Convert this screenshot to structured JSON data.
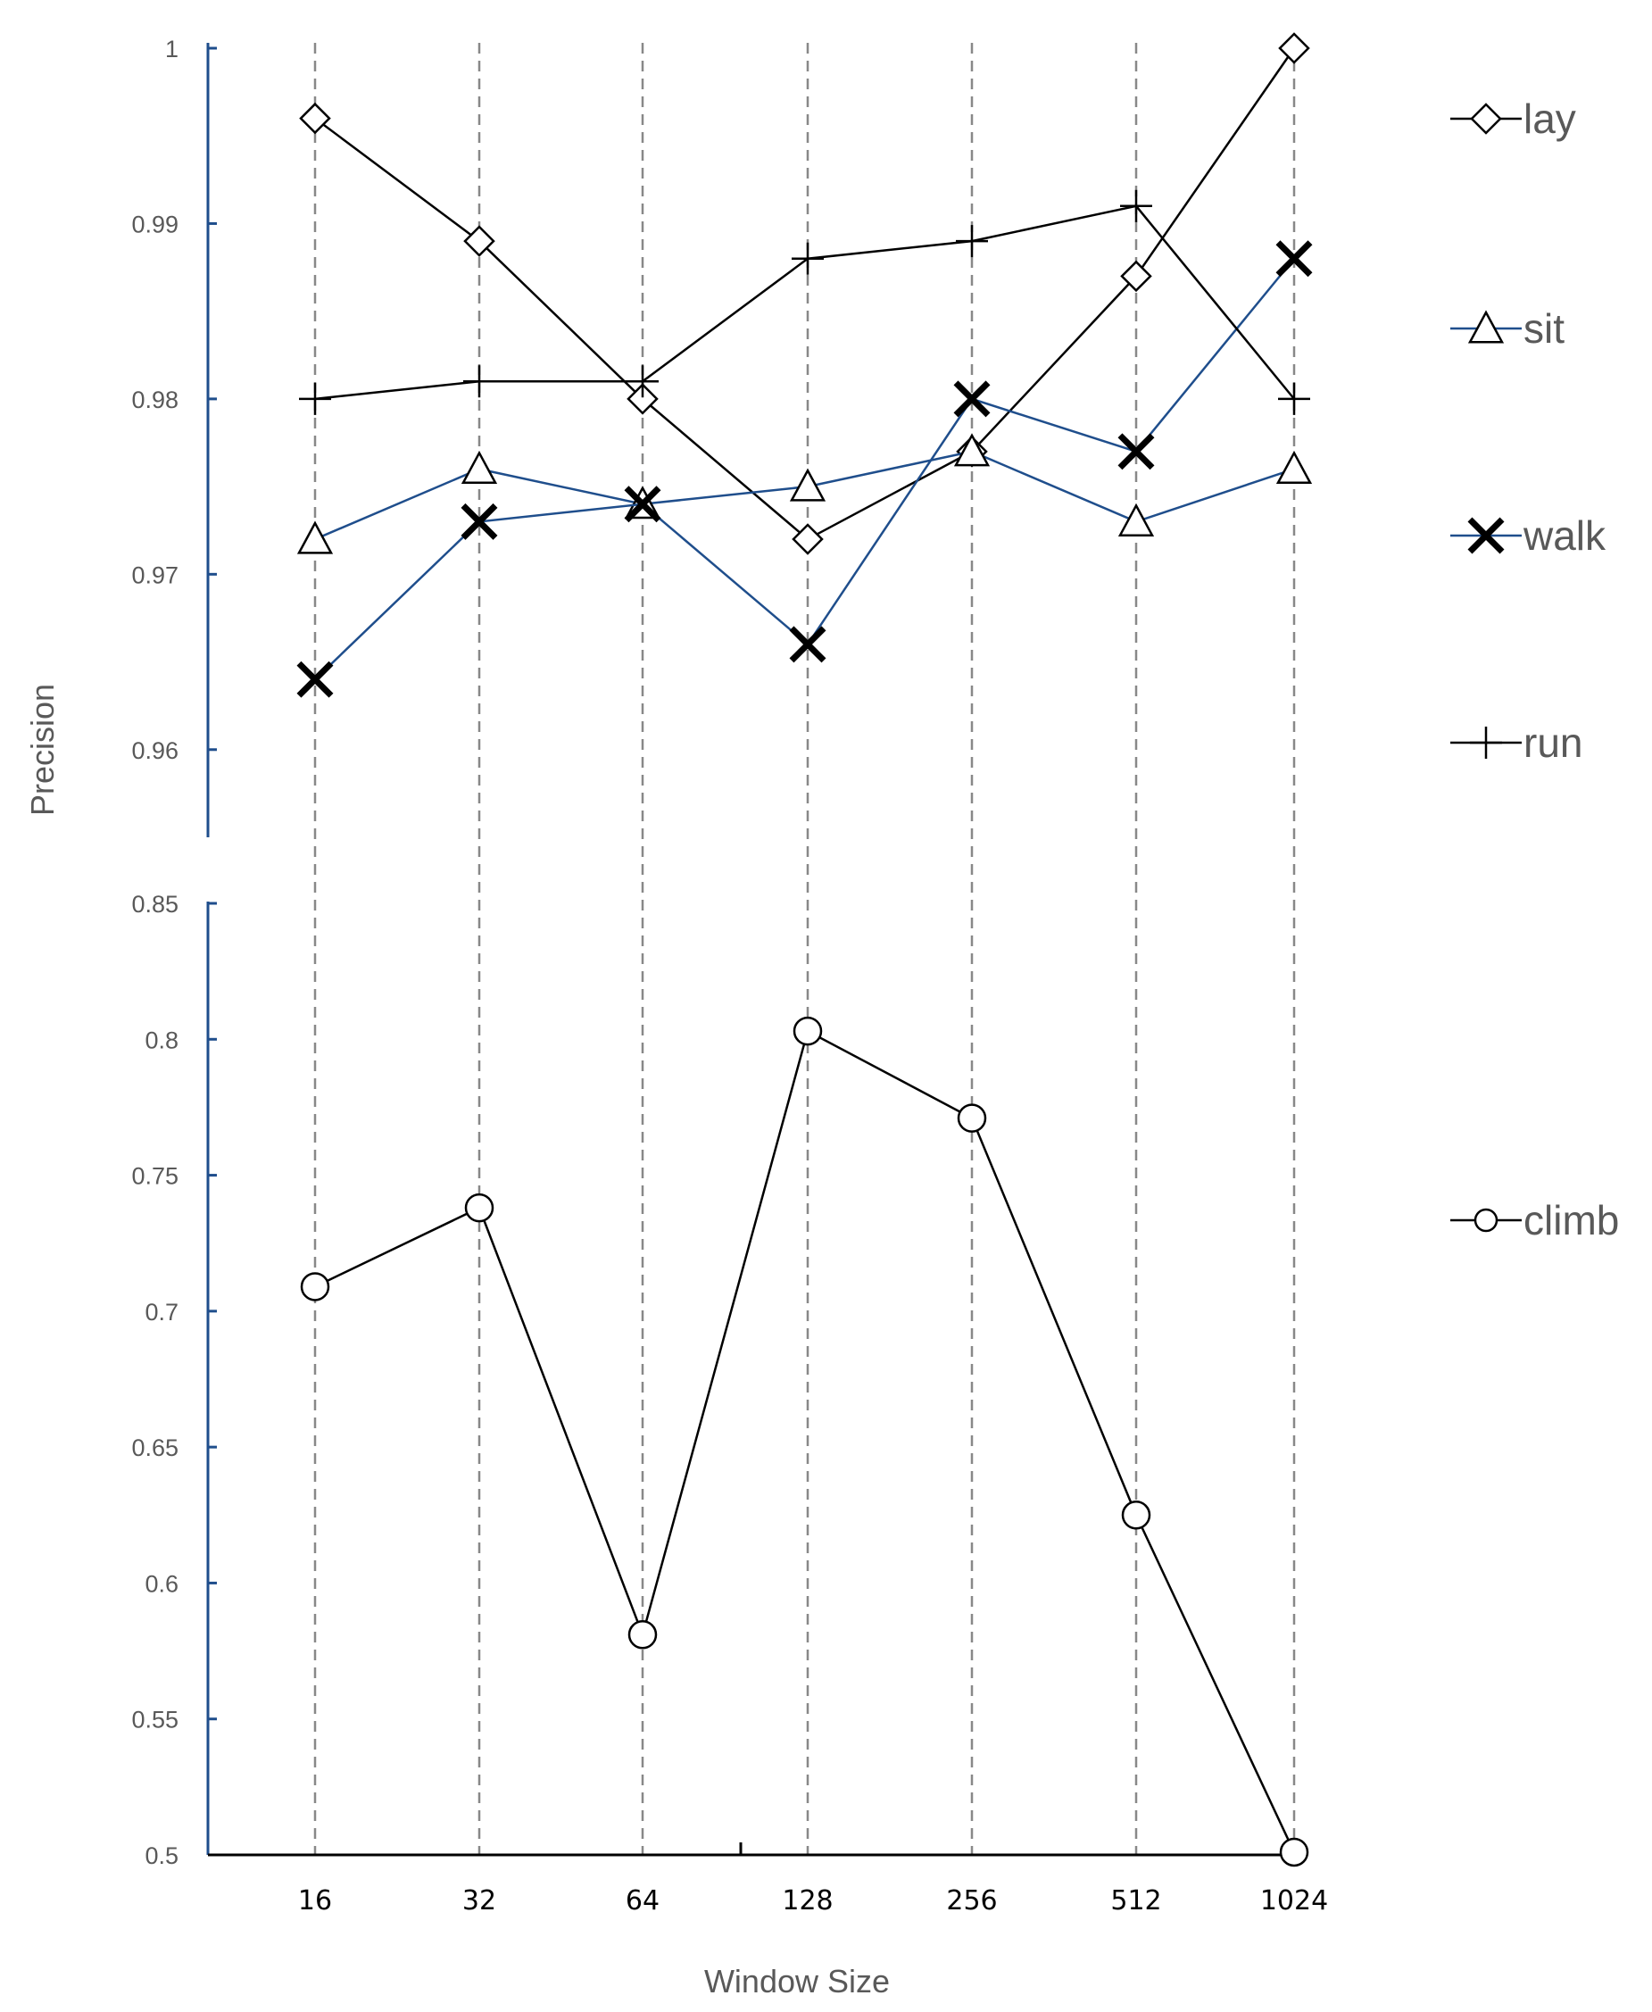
{
  "chart_data": [
    {
      "type": "line",
      "panel": "top",
      "ylabel": "Precision",
      "ylim": [
        0.955,
        1.0
      ],
      "yticks": [
        "1",
        "0.99",
        "0.98",
        "0.97",
        "0.96"
      ],
      "categories": [
        "16",
        "32",
        "64",
        "128",
        "256",
        "512",
        "1024"
      ],
      "series": [
        {
          "name": "lay",
          "marker": "diamond",
          "color": "#000000",
          "values": [
            0.996,
            0.989,
            0.98,
            0.972,
            0.977,
            0.987,
            1.0
          ]
        },
        {
          "name": "sit",
          "marker": "triangle",
          "color": "#1f4e8c",
          "values": [
            0.972,
            0.976,
            0.974,
            0.975,
            0.977,
            0.973,
            0.976
          ]
        },
        {
          "name": "walk",
          "marker": "x",
          "color": "#1f4e8c",
          "values": [
            0.964,
            0.973,
            0.974,
            0.966,
            0.98,
            0.977,
            0.988
          ]
        },
        {
          "name": "run",
          "marker": "plus",
          "color": "#000000",
          "values": [
            0.98,
            0.981,
            0.981,
            0.988,
            0.989,
            0.991,
            0.98
          ]
        }
      ]
    },
    {
      "type": "line",
      "panel": "bottom",
      "xlabel": "Window Size",
      "ylim": [
        0.5,
        0.85
      ],
      "yticks": [
        "0.85",
        "0.8",
        "0.75",
        "0.7",
        "0.65",
        "0.6",
        "0.55",
        "0.5"
      ],
      "categories": [
        "16",
        "32",
        "64",
        "128",
        "256",
        "512",
        "1024"
      ],
      "series": [
        {
          "name": "climb",
          "marker": "circle",
          "color": "#000000",
          "values": [
            0.709,
            0.738,
            0.581,
            0.803,
            0.771,
            0.625,
            0.501
          ]
        }
      ]
    }
  ],
  "colors": {
    "axis": "#1f4e8c",
    "grid": "#888888",
    "text": "#595959"
  }
}
